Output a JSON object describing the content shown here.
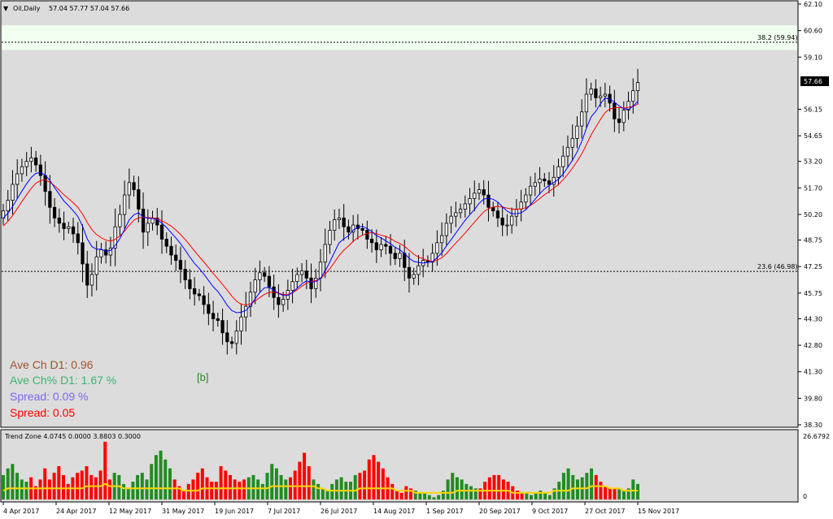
{
  "header": {
    "symbol": "Oil,Daily",
    "ohlc": "57.04 57.77 57.04 57.66"
  },
  "indicator_header": "Trend Zone 4.0745 0.0000 3.8803 0.3000",
  "info": {
    "ave_ch": "Ave Ch D1: 0.96",
    "ave_ch_pct": "Ave Ch% D1: 1.67 %",
    "spread_pct": "Spread: 0.09 %",
    "spread": "Spread: 0.05",
    "marker": "[b]"
  },
  "colors": {
    "background": "#dcdcdc",
    "bull": "#000000",
    "bear": "#000000",
    "ma_fast": "#0000ff",
    "ma_slow": "#ff0000",
    "hist_green": "#228b22",
    "hist_red": "#ff0000",
    "hist_line": "#ffd700",
    "fib_zone": "#f0fff0",
    "ave_ch": "#a0522d",
    "ave_ch_pct": "#3cb371",
    "spread_pct": "#7b68ee",
    "spread": "#ff0000"
  },
  "chart_data": [
    {
      "type": "candlestick",
      "ylim": [
        38.3,
        62.1
      ],
      "price_ticks": [
        "62.10",
        "60.60",
        "59.10",
        "57.66",
        "56.15",
        "54.65",
        "53.20",
        "51.70",
        "50.20",
        "48.75",
        "47.25",
        "45.75",
        "44.30",
        "42.80",
        "41.30",
        "39.80",
        "38.30"
      ],
      "current_price": "57.66",
      "fib_levels": [
        {
          "label": "38.2  (59.94)",
          "value": 59.94
        },
        {
          "label": "23.6  (46.98)",
          "value": 46.98
        }
      ],
      "fib_zone": [
        59.5,
        60.9
      ],
      "x_labels": [
        "4 Apr 2017",
        "24 Apr 2017",
        "12 May 2017",
        "31 May 2017",
        "19 Jun 2017",
        "7 Jul 2017",
        "26 Jul 2017",
        "14 Aug 2017",
        "1 Sep 2017",
        "20 Sep 2017",
        "9 Oct 2017",
        "27 Oct 2017",
        "15 Nov 2017"
      ],
      "closes": [
        50.4,
        51.0,
        51.9,
        52.5,
        52.9,
        53.2,
        53.4,
        53.0,
        52.4,
        51.5,
        50.6,
        50.0,
        49.7,
        49.4,
        49.5,
        49.1,
        48.6,
        47.4,
        46.2,
        46.8,
        47.8,
        48.2,
        47.9,
        48.3,
        49.5,
        50.2,
        51.3,
        52.0,
        51.6,
        50.5,
        49.2,
        49.7,
        50.0,
        49.6,
        48.8,
        48.4,
        47.9,
        47.6,
        47.1,
        46.5,
        46.0,
        45.7,
        45.6,
        45.1,
        44.6,
        44.3,
        44.2,
        43.5,
        43.0,
        42.9,
        43.6,
        44.4,
        45.0,
        45.8,
        46.5,
        46.9,
        46.7,
        46.1,
        45.5,
        45.1,
        45.4,
        45.9,
        46.4,
        46.8,
        47.0,
        46.6,
        46.0,
        46.6,
        47.5,
        48.5,
        49.3,
        49.9,
        50.0,
        49.5,
        49.2,
        49.6,
        49.4,
        49.3,
        48.8,
        48.6,
        48.2,
        48.5,
        48.4,
        48.0,
        47.7,
        48.0,
        47.2,
        46.6,
        46.8,
        47.3,
        47.6,
        47.5,
        48.0,
        48.6,
        49.0,
        49.7,
        50.1,
        50.3,
        50.5,
        50.8,
        51.1,
        51.4,
        51.6,
        51.3,
        50.6,
        50.4,
        50.0,
        49.6,
        49.6,
        50.1,
        50.5,
        50.9,
        51.3,
        51.8,
        52.0,
        52.2,
        52.1,
        51.9,
        52.3,
        52.9,
        53.5,
        54.0,
        54.5,
        55.2,
        56.0,
        57.0,
        57.3,
        56.8,
        56.9,
        57.0,
        56.5,
        55.6,
        55.4,
        56.1,
        56.6,
        57.2,
        57.66
      ],
      "ma_fast": [
        49.99,
        50.27,
        50.65,
        51.09,
        51.52,
        51.93,
        52.29,
        52.52,
        52.57,
        52.43,
        52.11,
        51.72,
        51.34,
        50.96,
        50.69,
        50.4,
        50.08,
        49.53,
        48.82,
        48.38,
        48.23,
        48.23,
        48.12,
        48.16,
        48.44,
        48.83,
        49.35,
        49.9,
        50.18,
        50.29,
        50.05,
        49.99,
        49.97,
        49.91,
        49.71,
        49.46,
        49.16,
        48.87,
        48.55,
        48.18,
        47.79,
        47.43,
        47.15,
        46.82,
        46.46,
        46.11,
        45.84,
        45.47,
        45.06,
        44.76,
        44.64,
        44.67,
        44.77,
        45.05,
        45.43,
        45.79,
        46.05,
        46.07,
        45.92,
        45.73,
        45.62,
        45.62,
        45.78,
        46.03,
        46.27,
        46.44,
        46.37,
        46.4,
        46.59,
        46.99,
        47.51,
        48.07,
        48.59,
        48.82,
        48.99,
        49.31,
        49.47,
        49.53,
        49.39,
        49.23,
        49.0,
        48.87,
        48.7,
        48.55,
        48.34,
        48.2,
        47.99,
        47.72,
        47.54,
        47.49,
        47.45,
        47.49,
        47.52,
        47.76,
        48.03,
        48.42,
        48.78,
        49.14,
        49.51,
        49.87,
        50.18,
        50.48,
        50.83,
        51.07,
        51.12,
        51.06,
        50.9,
        50.63,
        50.39,
        50.24,
        50.24,
        50.29,
        50.47,
        50.74,
        51.06,
        51.38,
        51.64,
        51.84,
        52.01,
        52.18,
        52.49,
        52.87,
        53.27,
        53.73,
        54.33,
        55.08,
        55.72,
        56.03,
        56.46,
        56.79,
        56.72,
        56.56,
        56.34,
        56.18,
        56.14,
        56.32,
        56.6
      ],
      "ma_slow": [
        49.54,
        49.8,
        50.14,
        50.53,
        50.92,
        51.31,
        51.68,
        51.96,
        52.12,
        52.16,
        52.02,
        51.82,
        51.58,
        51.31,
        51.09,
        50.86,
        50.59,
        50.22,
        49.75,
        49.34,
        49.06,
        48.88,
        48.75,
        48.69,
        48.79,
        48.98,
        49.25,
        49.59,
        49.87,
        50.01,
        50.04,
        50.02,
        50.0,
        49.97,
        49.84,
        49.7,
        49.54,
        49.32,
        49.07,
        48.78,
        48.47,
        48.13,
        47.81,
        47.51,
        47.19,
        46.86,
        46.56,
        46.24,
        45.92,
        45.58,
        45.29,
        45.12,
        45.08,
        45.14,
        45.3,
        45.5,
        45.68,
        45.79,
        45.8,
        45.75,
        45.67,
        45.68,
        45.77,
        45.93,
        46.14,
        46.31,
        46.4,
        46.46,
        46.58,
        46.82,
        47.13,
        47.5,
        47.88,
        48.18,
        48.41,
        48.68,
        48.89,
        49.02,
        49.13,
        49.18,
        49.11,
        49.02,
        48.96,
        48.84,
        48.67,
        48.56,
        48.4,
        48.17,
        47.95,
        47.79,
        47.69,
        47.59,
        47.54,
        47.61,
        47.75,
        47.99,
        48.3,
        48.58,
        48.86,
        49.15,
        49.46,
        49.76,
        50.06,
        50.35,
        50.52,
        50.62,
        50.66,
        50.62,
        50.56,
        50.51,
        50.48,
        50.51,
        50.58,
        50.71,
        50.89,
        51.1,
        51.31,
        51.49,
        51.69,
        51.89,
        52.16,
        52.47,
        52.82,
        53.2,
        53.63,
        54.15,
        54.7,
        55.14,
        55.57,
        55.96,
        56.17,
        56.23,
        56.25,
        56.21,
        56.26,
        56.31,
        56.44
      ]
    },
    {
      "type": "bar",
      "ylim": [
        0,
        26.6792
      ],
      "ticks": [
        "26.6792",
        "0"
      ],
      "values": [
        11,
        14,
        16,
        12,
        9,
        8,
        10,
        6,
        9,
        14,
        9,
        12,
        15,
        11,
        7,
        10,
        12,
        13,
        15,
        11,
        10,
        13,
        26,
        9,
        12,
        11,
        7,
        5,
        8,
        11,
        12,
        9,
        16,
        20,
        22,
        18,
        14,
        9,
        6,
        4,
        7,
        9,
        12,
        14,
        10,
        8,
        8,
        15,
        13,
        11,
        9,
        8,
        9,
        10,
        11,
        9,
        7,
        12,
        16,
        14,
        11,
        9,
        10,
        13,
        17,
        21,
        15,
        9,
        7,
        5,
        4,
        7,
        9,
        10,
        8,
        8,
        11,
        12,
        13,
        18,
        20,
        17,
        14,
        10,
        7,
        4,
        3,
        6,
        5,
        4,
        3,
        3,
        2,
        1,
        2,
        4,
        9,
        12,
        10,
        9,
        7,
        6,
        5,
        5,
        8,
        10,
        11,
        11,
        9,
        8,
        6,
        4,
        3,
        3,
        2,
        3,
        4,
        3,
        2,
        5,
        8,
        12,
        14,
        11,
        9,
        10,
        12,
        14,
        11,
        8,
        6,
        5,
        5,
        5,
        4,
        5,
        9,
        7
      ],
      "colors": [
        "g",
        "g",
        "g",
        "g",
        "g",
        "g",
        "r",
        "r",
        "r",
        "r",
        "r",
        "r",
        "r",
        "r",
        "r",
        "r",
        "r",
        "r",
        "r",
        "r",
        "r",
        "r",
        "r",
        "r",
        "g",
        "g",
        "g",
        "g",
        "g",
        "g",
        "g",
        "g",
        "g",
        "g",
        "g",
        "g",
        "g",
        "r",
        "r",
        "r",
        "r",
        "r",
        "r",
        "r",
        "r",
        "r",
        "r",
        "r",
        "r",
        "r",
        "r",
        "r",
        "r",
        "g",
        "g",
        "g",
        "g",
        "g",
        "g",
        "g",
        "g",
        "g",
        "r",
        "r",
        "r",
        "r",
        "r",
        "g",
        "g",
        "g",
        "g",
        "g",
        "g",
        "g",
        "g",
        "g",
        "g",
        "r",
        "r",
        "r",
        "r",
        "r",
        "r",
        "r",
        "r",
        "r",
        "r",
        "r",
        "r",
        "g",
        "g",
        "g",
        "g",
        "g",
        "g",
        "g",
        "g",
        "g",
        "g",
        "g",
        "g",
        "g",
        "g",
        "r",
        "r",
        "r",
        "r",
        "r",
        "r",
        "r",
        "r",
        "r",
        "r",
        "g",
        "g",
        "g",
        "g",
        "g",
        "g",
        "g",
        "g",
        "g",
        "g",
        "g",
        "g",
        "g",
        "g",
        "g",
        "r",
        "r",
        "r",
        "r",
        "r",
        "g",
        "g",
        "g",
        "g",
        "g",
        "g",
        "g",
        "g"
      ],
      "signal": [
        4,
        5,
        5,
        5,
        5,
        5,
        5,
        5,
        5,
        5,
        5,
        5,
        5,
        5,
        5,
        5,
        5,
        5,
        6,
        6,
        6,
        6,
        7,
        6,
        6,
        6,
        5,
        5,
        5,
        5,
        5,
        5,
        5,
        5,
        5,
        5,
        5,
        5,
        5,
        4,
        4,
        4,
        4,
        5,
        5,
        5,
        5,
        5,
        5,
        5,
        5,
        5,
        5,
        5,
        5,
        5,
        5,
        5,
        6,
        6,
        6,
        6,
        6,
        6,
        6,
        6,
        6,
        6,
        5,
        5,
        4,
        4,
        4,
        4,
        4,
        4,
        4,
        5,
        5,
        5,
        5,
        5,
        5,
        5,
        5,
        4,
        4,
        4,
        4,
        3,
        3,
        3,
        3,
        3,
        3,
        3,
        3,
        3,
        4,
        4,
        4,
        4,
        4,
        4,
        4,
        4,
        4,
        4,
        4,
        4,
        3,
        3,
        3,
        3,
        3,
        3,
        3,
        3,
        3,
        4,
        4,
        4,
        4,
        5,
        5,
        5,
        5,
        6,
        6,
        6,
        6,
        5,
        5,
        5,
        4,
        4,
        4,
        4
      ]
    }
  ]
}
